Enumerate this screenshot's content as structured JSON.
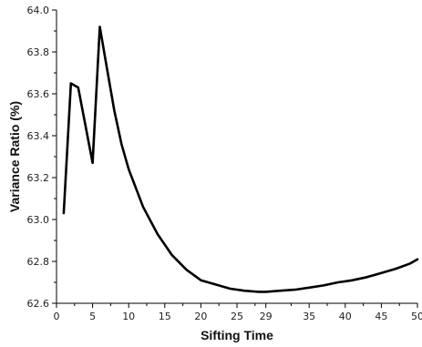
{
  "chart_data": {
    "type": "line",
    "title": "",
    "xlabel": "Sifting Time",
    "ylabel": "Variance Ratio (%)",
    "xlim": [
      0,
      50
    ],
    "ylim": [
      62.6,
      64.0
    ],
    "x_ticks": [
      0,
      5,
      10,
      15,
      20,
      25,
      29,
      35,
      40,
      45,
      50
    ],
    "x_tick_labels": [
      "0",
      "5",
      "10",
      "15",
      "20",
      "25",
      "29",
      "35",
      "40",
      "45",
      "50"
    ],
    "y_ticks": [
      62.6,
      62.8,
      63.0,
      63.2,
      63.4,
      63.6,
      63.8,
      64.0
    ],
    "y_tick_labels": [
      "62.6",
      "62.8",
      "63.0",
      "63.2",
      "63.4",
      "63.6",
      "63.8",
      "64.0"
    ],
    "grid": false,
    "legend": "none",
    "line_color": "#000000",
    "series": [
      {
        "x": [
          1,
          2,
          3,
          4,
          5,
          6,
          7,
          8,
          9,
          10,
          12,
          14,
          16,
          18,
          20,
          22,
          24,
          26,
          28,
          29,
          31,
          33,
          35,
          37,
          39,
          41,
          43,
          45,
          47,
          49,
          50
        ],
        "values": [
          63.03,
          63.65,
          63.63,
          63.45,
          63.27,
          63.92,
          63.72,
          63.52,
          63.36,
          63.24,
          63.06,
          62.93,
          62.83,
          62.76,
          62.71,
          62.69,
          62.67,
          62.66,
          62.655,
          62.655,
          62.66,
          62.665,
          62.675,
          62.685,
          62.7,
          62.71,
          62.725,
          62.745,
          62.765,
          62.79,
          62.81
        ]
      }
    ]
  }
}
